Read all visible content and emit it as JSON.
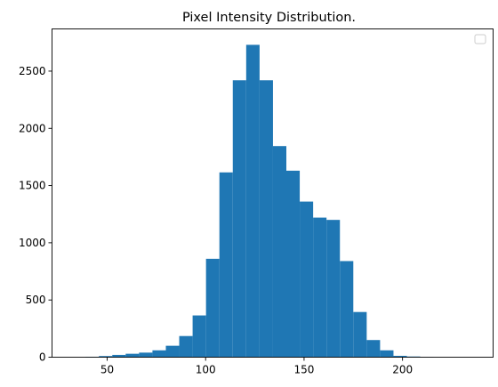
{
  "chart_data": {
    "type": "bar",
    "title": "Pixel Intensity Distribution.",
    "xlabel": "",
    "ylabel": "",
    "xlim": [
      22,
      246
    ],
    "ylim": [
      0,
      2869
    ],
    "x_ticks": [
      50,
      100,
      150,
      200
    ],
    "y_ticks": [
      0,
      500,
      1000,
      1500,
      2000,
      2500
    ],
    "grid": false,
    "legend": "upper right (empty)",
    "bar_color": "#1f77b4",
    "bins": [
      {
        "x_start": 39.0,
        "x_end": 45.8,
        "value": 4
      },
      {
        "x_start": 45.8,
        "x_end": 52.6,
        "value": 10
      },
      {
        "x_start": 52.6,
        "x_end": 59.4,
        "value": 20
      },
      {
        "x_start": 59.4,
        "x_end": 66.2,
        "value": 30
      },
      {
        "x_start": 66.2,
        "x_end": 73.0,
        "value": 40
      },
      {
        "x_start": 73.0,
        "x_end": 79.8,
        "value": 60
      },
      {
        "x_start": 79.8,
        "x_end": 86.6,
        "value": 100
      },
      {
        "x_start": 86.6,
        "x_end": 93.4,
        "value": 185
      },
      {
        "x_start": 93.4,
        "x_end": 100.2,
        "value": 365
      },
      {
        "x_start": 100.2,
        "x_end": 107.0,
        "value": 860
      },
      {
        "x_start": 107.0,
        "x_end": 113.8,
        "value": 1615
      },
      {
        "x_start": 113.8,
        "x_end": 120.6,
        "value": 2420
      },
      {
        "x_start": 120.6,
        "x_end": 127.4,
        "value": 2730
      },
      {
        "x_start": 127.4,
        "x_end": 134.2,
        "value": 2420
      },
      {
        "x_start": 134.2,
        "x_end": 141.0,
        "value": 1845
      },
      {
        "x_start": 141.0,
        "x_end": 147.8,
        "value": 1630
      },
      {
        "x_start": 147.8,
        "x_end": 154.6,
        "value": 1360
      },
      {
        "x_start": 154.6,
        "x_end": 161.4,
        "value": 1220
      },
      {
        "x_start": 161.4,
        "x_end": 168.2,
        "value": 1200
      },
      {
        "x_start": 168.2,
        "x_end": 175.0,
        "value": 840
      },
      {
        "x_start": 175.0,
        "x_end": 181.8,
        "value": 395
      },
      {
        "x_start": 181.8,
        "x_end": 188.6,
        "value": 150
      },
      {
        "x_start": 188.6,
        "x_end": 195.4,
        "value": 60
      },
      {
        "x_start": 195.4,
        "x_end": 202.2,
        "value": 12
      },
      {
        "x_start": 202.2,
        "x_end": 209.0,
        "value": 6
      },
      {
        "x_start": 209.0,
        "x_end": 215.8,
        "value": 2
      }
    ]
  }
}
